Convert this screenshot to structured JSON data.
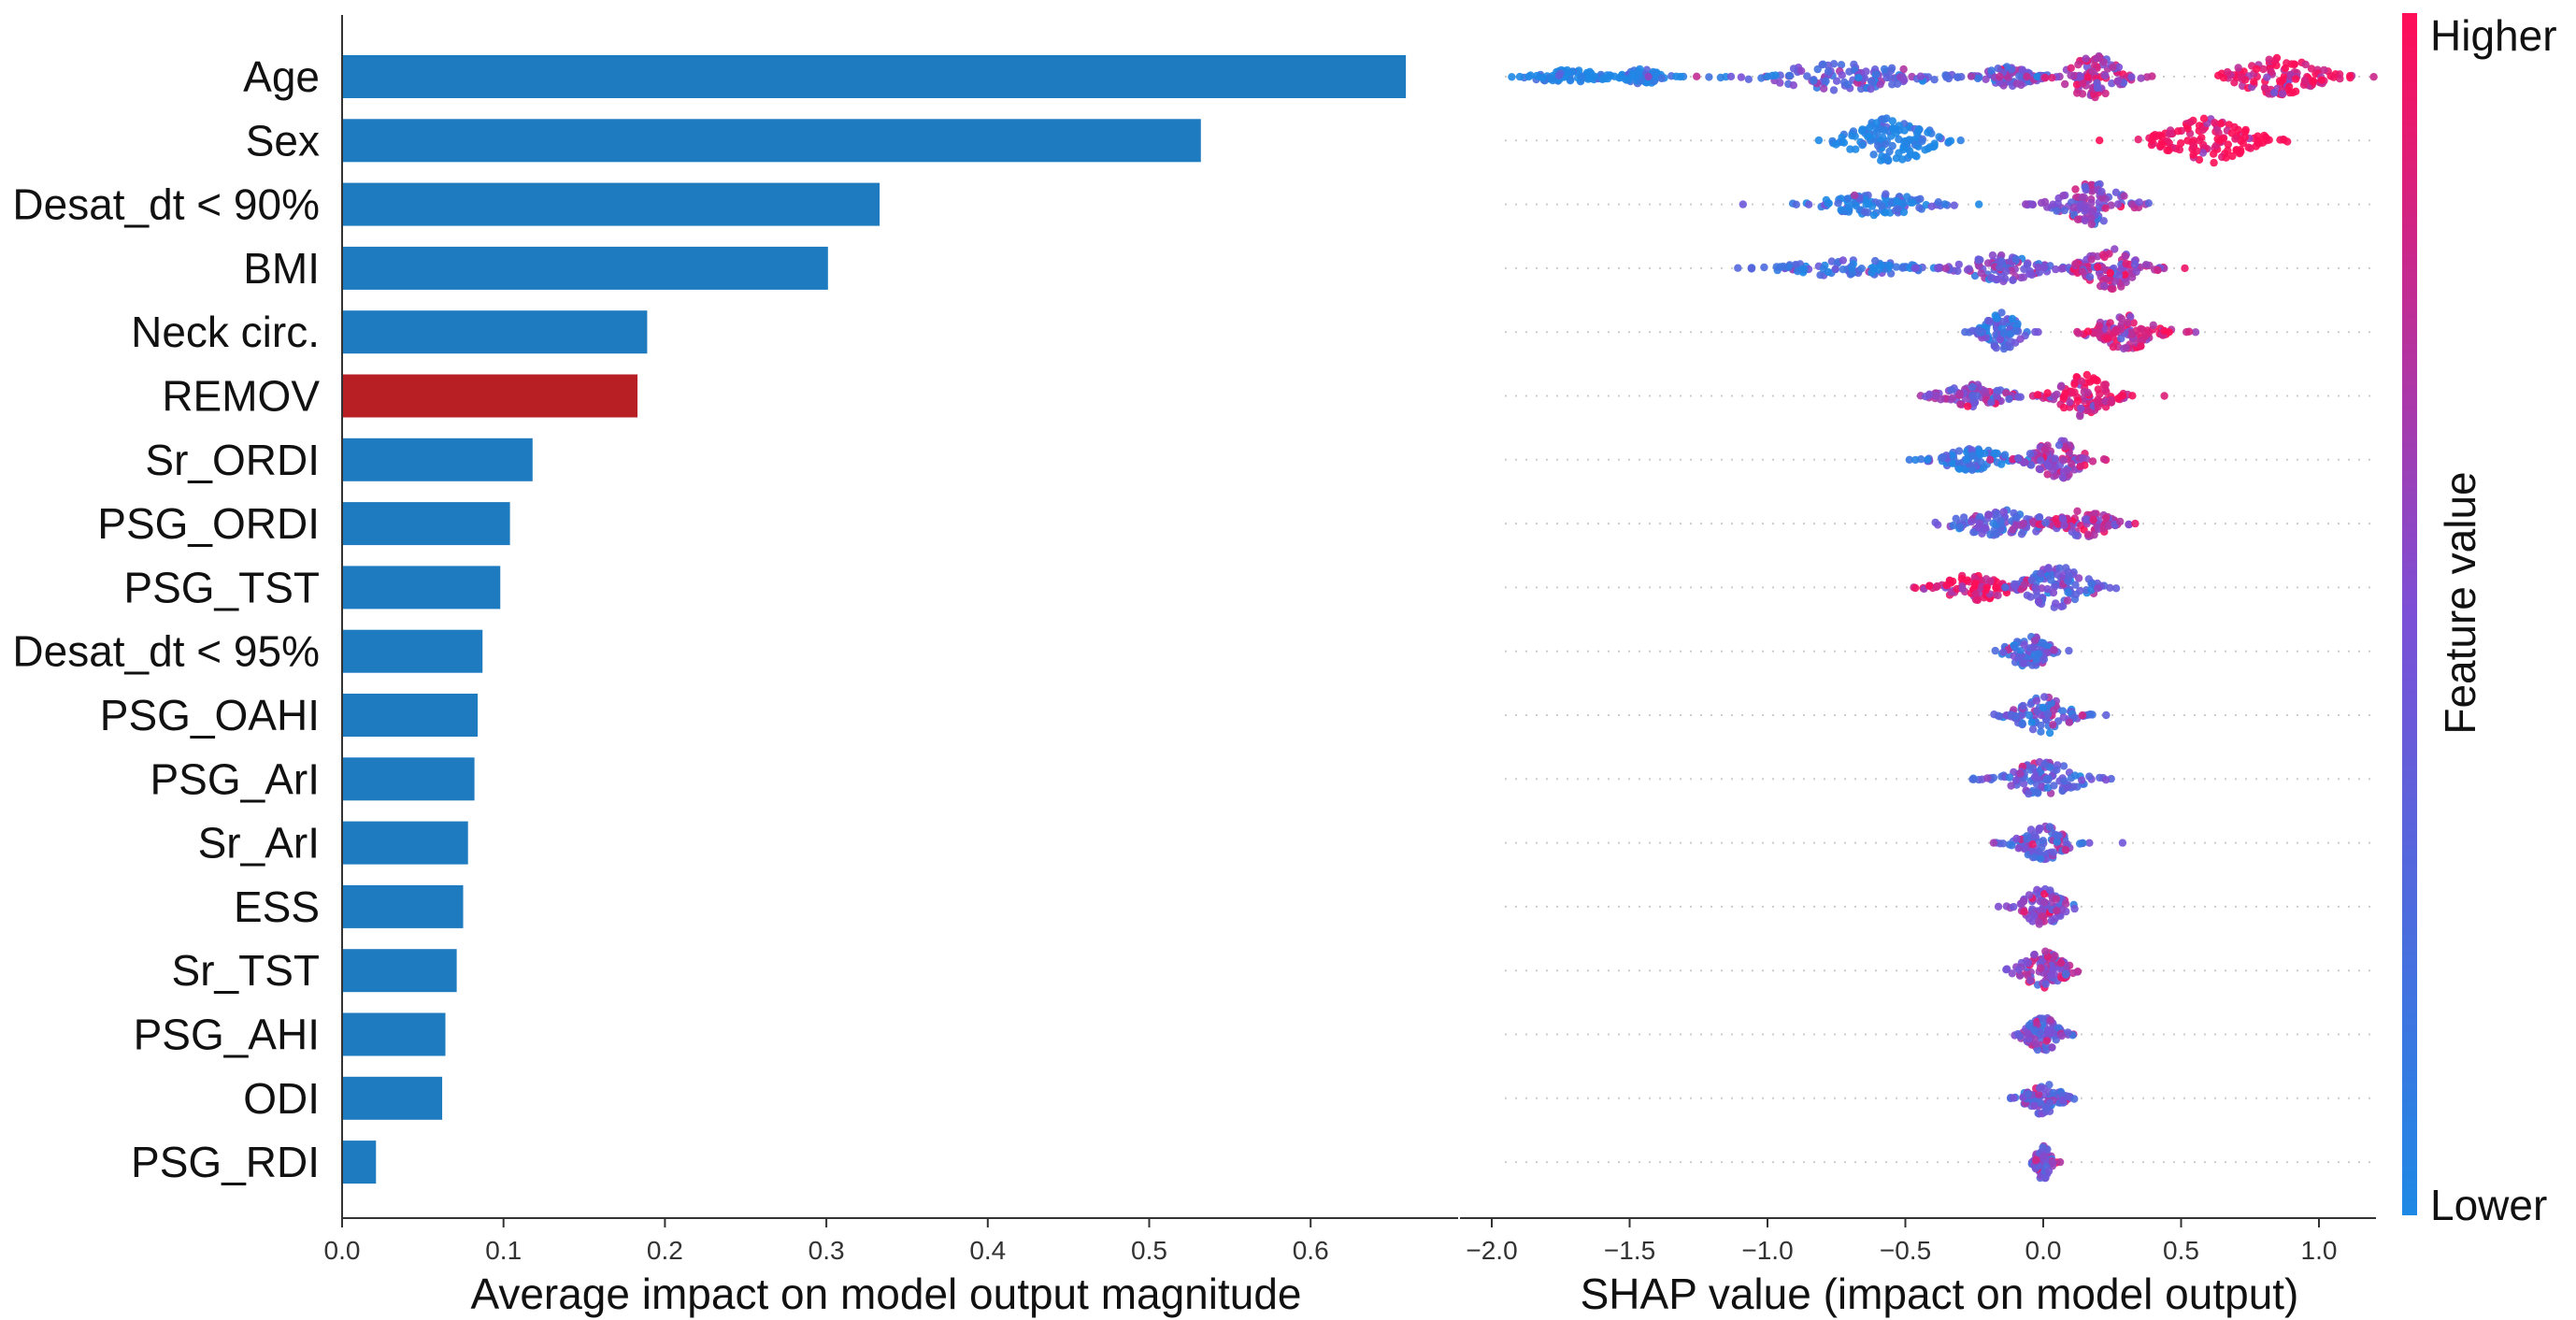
{
  "features": [
    "Age",
    "Sex",
    "Desat_dt < 90%",
    "BMI",
    "Neck circ.",
    "REMOV",
    "Sr_ORDI",
    "PSG_ORDI",
    "PSG_TST",
    "Desat_dt < 95%",
    "PSG_OAHI",
    "PSG_ArI",
    "Sr_ArI",
    "ESS",
    "Sr_TST",
    "PSG_AHI",
    "ODI",
    "PSG_RDI"
  ],
  "chart_data": [
    {
      "type": "bar",
      "orientation": "horizontal",
      "title": "",
      "xlabel": "Average impact on model output magnitude",
      "ylabel": "",
      "categories": [
        "Age",
        "Sex",
        "Desat_dt < 90%",
        "BMI",
        "Neck circ.",
        "REMOV",
        "Sr_ORDI",
        "PSG_ORDI",
        "PSG_TST",
        "Desat_dt < 95%",
        "PSG_OAHI",
        "PSG_ArI",
        "Sr_ArI",
        "ESS",
        "Sr_TST",
        "PSG_AHI",
        "ODI",
        "PSG_RDI"
      ],
      "values": [
        0.659,
        0.532,
        0.333,
        0.301,
        0.189,
        0.183,
        0.118,
        0.104,
        0.098,
        0.087,
        0.084,
        0.082,
        0.078,
        0.075,
        0.071,
        0.064,
        0.062,
        0.021
      ],
      "highlight": "REMOV",
      "bar_color": "#1f7bbf",
      "highlight_color": "#b81f25",
      "xlim": [
        0.0,
        0.7
      ],
      "xticks": [
        0.0,
        0.1,
        0.2,
        0.3,
        0.4,
        0.5,
        0.6
      ],
      "xtick_labels": [
        "0.0",
        "0.1",
        "0.2",
        "0.3",
        "0.4",
        "0.5",
        "0.6"
      ]
    },
    {
      "type": "scatter",
      "subtype": "beeswarm",
      "title": "",
      "xlabel": "SHAP value (impact on model output)",
      "ylabel": "",
      "xlim": [
        -2.05,
        1.2
      ],
      "xticks": [
        -2.0,
        -1.5,
        -1.0,
        -0.5,
        0.0,
        0.5,
        1.0
      ],
      "xtick_labels": [
        "−2.0",
        "−1.5",
        "−1.0",
        "−0.5",
        "0.0",
        "0.5",
        "1.0"
      ],
      "colorbar": {
        "label": "Feature value",
        "high_label": "Higher",
        "low_label": "Lower",
        "high_color": "#ff0d57",
        "low_color": "#1e88e5"
      },
      "rows": [
        {
          "feature": "Age",
          "clusters": [
            {
              "center": -1.72,
              "width": 0.24,
              "height": 0.28,
              "feature_value": 0.0
            },
            {
              "center": -1.45,
              "width": 0.12,
              "height": 0.32,
              "feature_value": 0.05
            },
            {
              "center": -0.72,
              "width": 0.5,
              "height": 0.55,
              "feature_value": 0.35
            },
            {
              "center": -0.12,
              "width": 0.18,
              "height": 0.4,
              "feature_value": 0.45
            },
            {
              "center": 0.18,
              "width": 0.2,
              "height": 0.85,
              "feature_value": 0.7
            },
            {
              "center": 0.85,
              "width": 0.3,
              "height": 0.75,
              "feature_value": 0.95
            }
          ]
        },
        {
          "feature": "Sex",
          "clusters": [
            {
              "center": -0.55,
              "width": 0.28,
              "height": 0.9,
              "feature_value": 0.0
            },
            {
              "center": 0.6,
              "width": 0.3,
              "height": 0.9,
              "feature_value": 1.0
            }
          ]
        },
        {
          "feature": "Desat_dt < 90%",
          "clusters": [
            {
              "center": -0.6,
              "width": 0.35,
              "height": 0.45,
              "feature_value": 0.1
            },
            {
              "center": 0.18,
              "width": 0.22,
              "height": 0.85,
              "feature_value": 0.55
            }
          ]
        },
        {
          "feature": "BMI",
          "clusters": [
            {
              "center": -0.7,
              "width": 0.4,
              "height": 0.35,
              "feature_value": 0.15
            },
            {
              "center": -0.15,
              "width": 0.25,
              "height": 0.55,
              "feature_value": 0.45
            },
            {
              "center": 0.25,
              "width": 0.2,
              "height": 0.85,
              "feature_value": 0.65
            }
          ]
        },
        {
          "feature": "Neck circ.",
          "clusters": [
            {
              "center": -0.15,
              "width": 0.12,
              "height": 0.8,
              "feature_value": 0.3
            },
            {
              "center": 0.3,
              "width": 0.22,
              "height": 0.7,
              "feature_value": 0.8
            }
          ]
        },
        {
          "feature": "REMOV",
          "clusters": [
            {
              "center": -0.25,
              "width": 0.22,
              "height": 0.45,
              "feature_value": 0.55
            },
            {
              "center": 0.15,
              "width": 0.18,
              "height": 0.85,
              "feature_value": 0.85
            }
          ]
        },
        {
          "feature": "Sr_ORDI",
          "clusters": [
            {
              "center": -0.25,
              "width": 0.22,
              "height": 0.45,
              "feature_value": 0.15
            },
            {
              "center": 0.05,
              "width": 0.17,
              "height": 0.8,
              "feature_value": 0.6
            }
          ]
        },
        {
          "feature": "PSG_ORDI",
          "clusters": [
            {
              "center": -0.15,
              "width": 0.3,
              "height": 0.55,
              "feature_value": 0.4
            },
            {
              "center": 0.15,
              "width": 0.18,
              "height": 0.55,
              "feature_value": 0.7
            }
          ]
        },
        {
          "feature": "PSG_TST",
          "clusters": [
            {
              "center": -0.25,
              "width": 0.22,
              "height": 0.55,
              "feature_value": 0.9
            },
            {
              "center": 0.05,
              "width": 0.22,
              "height": 0.85,
              "feature_value": 0.4
            }
          ]
        },
        {
          "feature": "Desat_dt < 95%",
          "clusters": [
            {
              "center": -0.05,
              "width": 0.15,
              "height": 0.65,
              "feature_value": 0.35
            }
          ]
        },
        {
          "feature": "PSG_OAHI",
          "clusters": [
            {
              "center": 0.0,
              "width": 0.18,
              "height": 0.75,
              "feature_value": 0.35
            }
          ]
        },
        {
          "feature": "PSG_ArI",
          "clusters": [
            {
              "center": 0.0,
              "width": 0.25,
              "height": 0.7,
              "feature_value": 0.35
            }
          ]
        },
        {
          "feature": "Sr_ArI",
          "clusters": [
            {
              "center": 0.0,
              "width": 0.16,
              "height": 0.7,
              "feature_value": 0.4
            }
          ]
        },
        {
          "feature": "ESS",
          "clusters": [
            {
              "center": 0.0,
              "width": 0.14,
              "height": 0.75,
              "feature_value": 0.55
            }
          ]
        },
        {
          "feature": "Sr_TST",
          "clusters": [
            {
              "center": 0.0,
              "width": 0.15,
              "height": 0.8,
              "feature_value": 0.6
            }
          ]
        },
        {
          "feature": "PSG_AHI",
          "clusters": [
            {
              "center": 0.0,
              "width": 0.12,
              "height": 0.7,
              "feature_value": 0.45
            }
          ]
        },
        {
          "feature": "ODI",
          "clusters": [
            {
              "center": 0.0,
              "width": 0.12,
              "height": 0.7,
              "feature_value": 0.4
            }
          ]
        },
        {
          "feature": "PSG_RDI",
          "clusters": [
            {
              "center": 0.0,
              "width": 0.05,
              "height": 0.75,
              "feature_value": 0.55
            }
          ]
        }
      ]
    }
  ]
}
